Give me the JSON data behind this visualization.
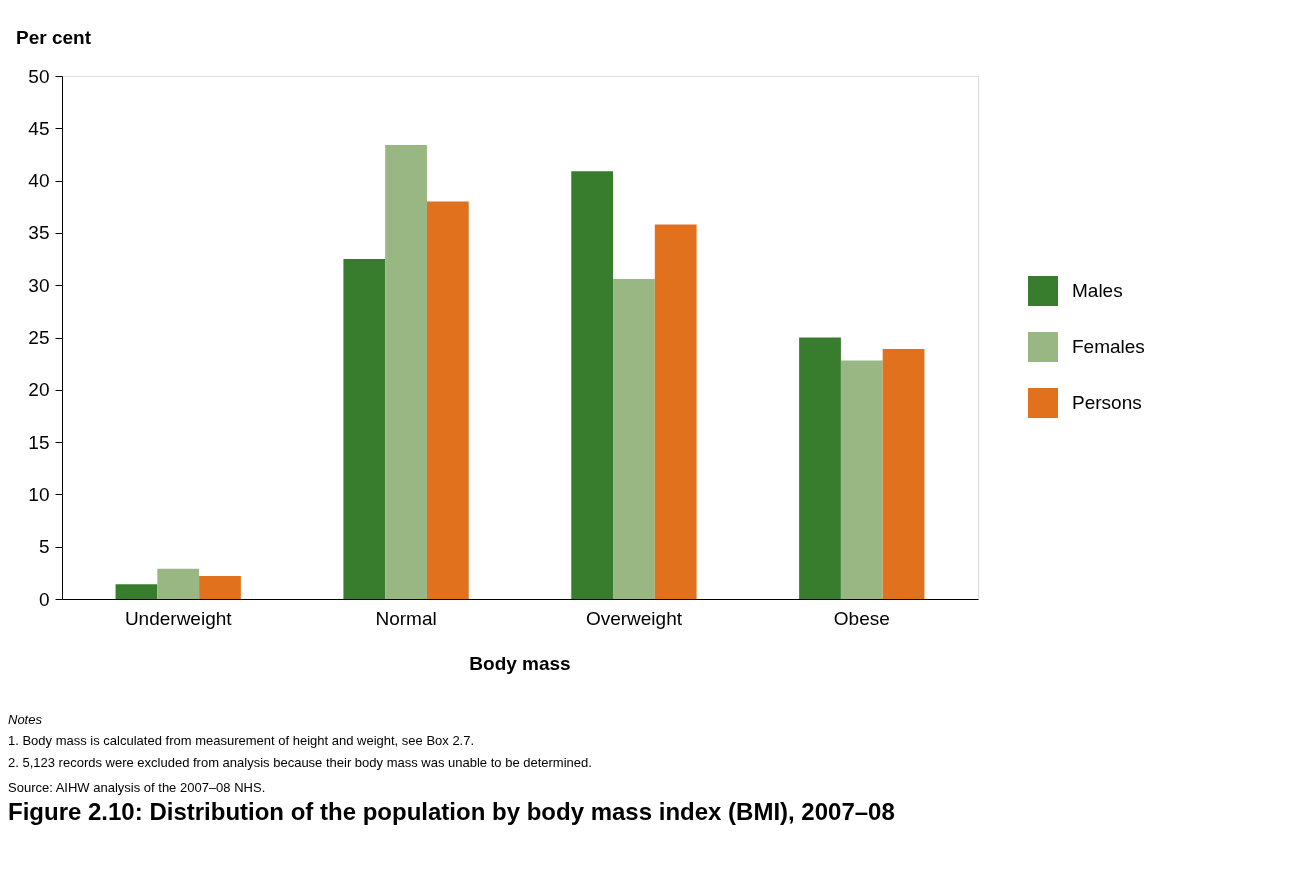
{
  "chart_data": {
    "type": "bar",
    "title": "Figure 2.10: Distribution of the population by body mass index (BMI), 2007–08",
    "xlabel": "Body mass",
    "ylabel": "Per cent",
    "categories": [
      "Underweight",
      "Normal",
      "Overweight",
      "Obese"
    ],
    "series": [
      {
        "name": "Males",
        "color": "#387c2d",
        "values": [
          1.4,
          32.5,
          40.9,
          25.0
        ]
      },
      {
        "name": "Females",
        "color": "#98b783",
        "values": [
          2.9,
          43.4,
          30.6,
          22.8
        ]
      },
      {
        "name": "Persons",
        "color": "#e2711e",
        "values": [
          2.2,
          38.0,
          35.8,
          23.9
        ]
      }
    ],
    "ylim": [
      0,
      50
    ],
    "yticks": [
      0,
      5,
      10,
      15,
      20,
      25,
      30,
      35,
      40,
      45,
      50
    ],
    "grid": false,
    "legend": "right",
    "annotations": [
      "Notes",
      "1.  Body mass is calculated from measurement of height and weight, see Box 2.7.",
      "2.  5,123 records were excluded from analysis because their body mass was unable to be determined.",
      "Source: AIHW analysis of the 2007–08 NHS."
    ]
  }
}
